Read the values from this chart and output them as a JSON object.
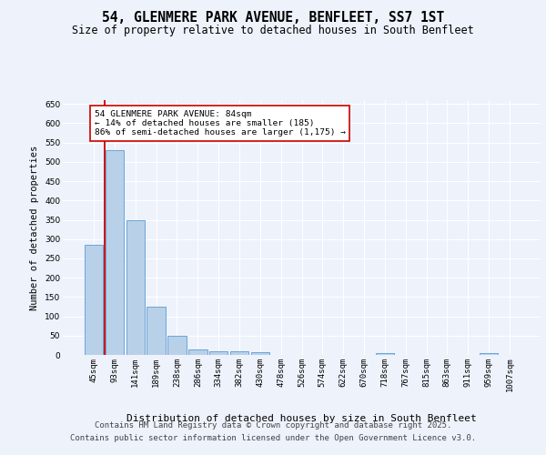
{
  "title": "54, GLENMERE PARK AVENUE, BENFLEET, SS7 1ST",
  "subtitle": "Size of property relative to detached houses in South Benfleet",
  "xlabel": "Distribution of detached houses by size in South Benfleet",
  "ylabel": "Number of detached properties",
  "categories": [
    "45sqm",
    "93sqm",
    "141sqm",
    "189sqm",
    "238sqm",
    "286sqm",
    "334sqm",
    "382sqm",
    "430sqm",
    "478sqm",
    "526sqm",
    "574sqm",
    "622sqm",
    "670sqm",
    "718sqm",
    "767sqm",
    "815sqm",
    "863sqm",
    "911sqm",
    "959sqm",
    "1007sqm"
  ],
  "values": [
    285,
    530,
    348,
    125,
    50,
    15,
    10,
    10,
    7,
    0,
    0,
    0,
    0,
    0,
    5,
    0,
    0,
    0,
    0,
    5,
    0
  ],
  "bar_color": "#b8d0e8",
  "bar_edge_color": "#5b9bd5",
  "bar_edge_width": 0.6,
  "vline_color": "#cc0000",
  "vline_pos": 0.5,
  "annotation_text": "54 GLENMERE PARK AVENUE: 84sqm\n← 14% of detached houses are smaller (185)\n86% of semi-detached houses are larger (1,175) →",
  "annotation_box_color": "#ffffff",
  "annotation_box_edge": "#cc0000",
  "ylim": [
    0,
    660
  ],
  "yticks": [
    0,
    50,
    100,
    150,
    200,
    250,
    300,
    350,
    400,
    450,
    500,
    550,
    600,
    650
  ],
  "background_color": "#edf2fb",
  "grid_color": "#ffffff",
  "footer_line1": "Contains HM Land Registry data © Crown copyright and database right 2025.",
  "footer_line2": "Contains public sector information licensed under the Open Government Licence v3.0.",
  "title_fontsize": 10.5,
  "subtitle_fontsize": 8.5,
  "tick_fontsize": 6.5,
  "ylabel_fontsize": 7.5,
  "xlabel_fontsize": 8,
  "footer_fontsize": 6.5,
  "ann_fontsize": 6.8
}
